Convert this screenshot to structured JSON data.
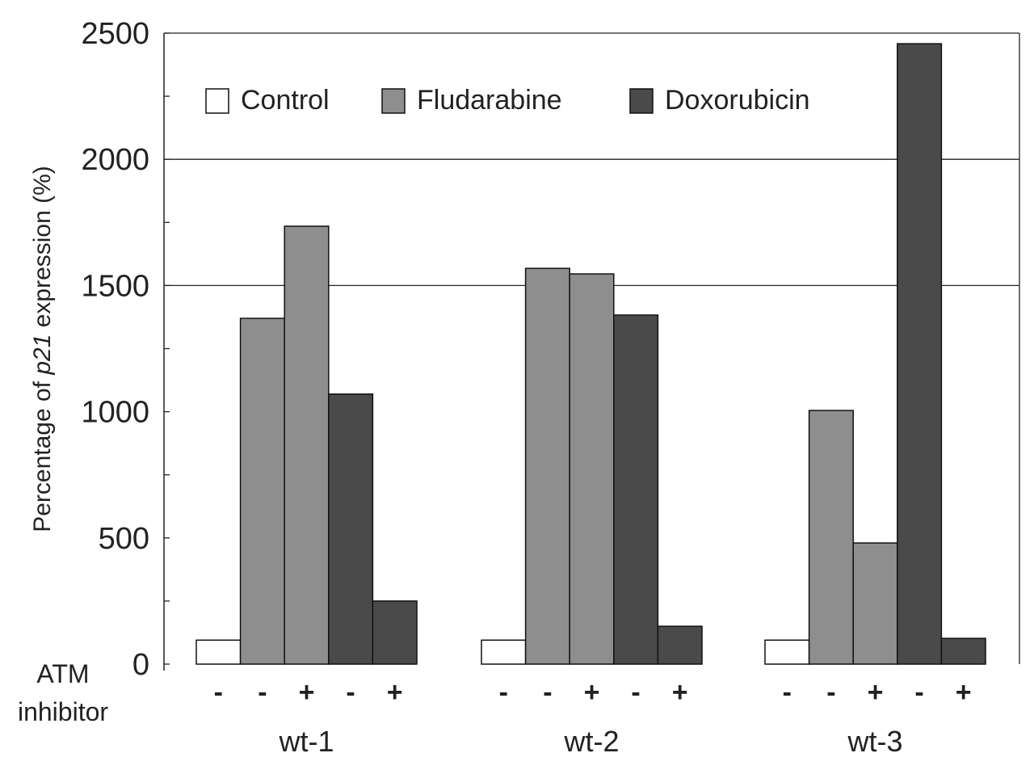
{
  "chart_data": {
    "type": "bar",
    "title": "",
    "xlabel": "",
    "ylabel_parts": [
      "Percentage of ",
      "p21",
      " expression (%)"
    ],
    "ylim": [
      0,
      2500
    ],
    "yticks": [
      "0",
      "500",
      "1000",
      "1500",
      "2000",
      "2500"
    ],
    "gridlines": [
      1500,
      2000
    ],
    "legend_position": "top-left",
    "legend": [
      {
        "name": "Control",
        "color": "#ffffff"
      },
      {
        "name": "Fludarabine",
        "color": "#8e8e8e"
      },
      {
        "name": "Doxorubicin",
        "color": "#4a4a4a"
      }
    ],
    "row_label": [
      "ATM",
      "inhibitor"
    ],
    "groups": [
      {
        "label": "wt-1",
        "bars": [
          {
            "treatment": "Control",
            "atm": "-",
            "value": 95
          },
          {
            "treatment": "Fludarabine",
            "atm": "-",
            "value": 1370
          },
          {
            "treatment": "Fludarabine",
            "atm": "+",
            "value": 1735
          },
          {
            "treatment": "Doxorubicin",
            "atm": "-",
            "value": 1070
          },
          {
            "treatment": "Doxorubicin",
            "atm": "+",
            "value": 250
          }
        ]
      },
      {
        "label": "wt-2",
        "bars": [
          {
            "treatment": "Control",
            "atm": "-",
            "value": 95
          },
          {
            "treatment": "Fludarabine",
            "atm": "-",
            "value": 1568
          },
          {
            "treatment": "Fludarabine",
            "atm": "+",
            "value": 1546
          },
          {
            "treatment": "Doxorubicin",
            "atm": "-",
            "value": 1383
          },
          {
            "treatment": "Doxorubicin",
            "atm": "+",
            "value": 150
          }
        ]
      },
      {
        "label": "wt-3",
        "bars": [
          {
            "treatment": "Control",
            "atm": "-",
            "value": 95
          },
          {
            "treatment": "Fludarabine",
            "atm": "-",
            "value": 1005
          },
          {
            "treatment": "Fludarabine",
            "atm": "+",
            "value": 480
          },
          {
            "treatment": "Doxorubicin",
            "atm": "-",
            "value": 2458
          },
          {
            "treatment": "Doxorubicin",
            "atm": "+",
            "value": 102
          }
        ]
      }
    ]
  }
}
